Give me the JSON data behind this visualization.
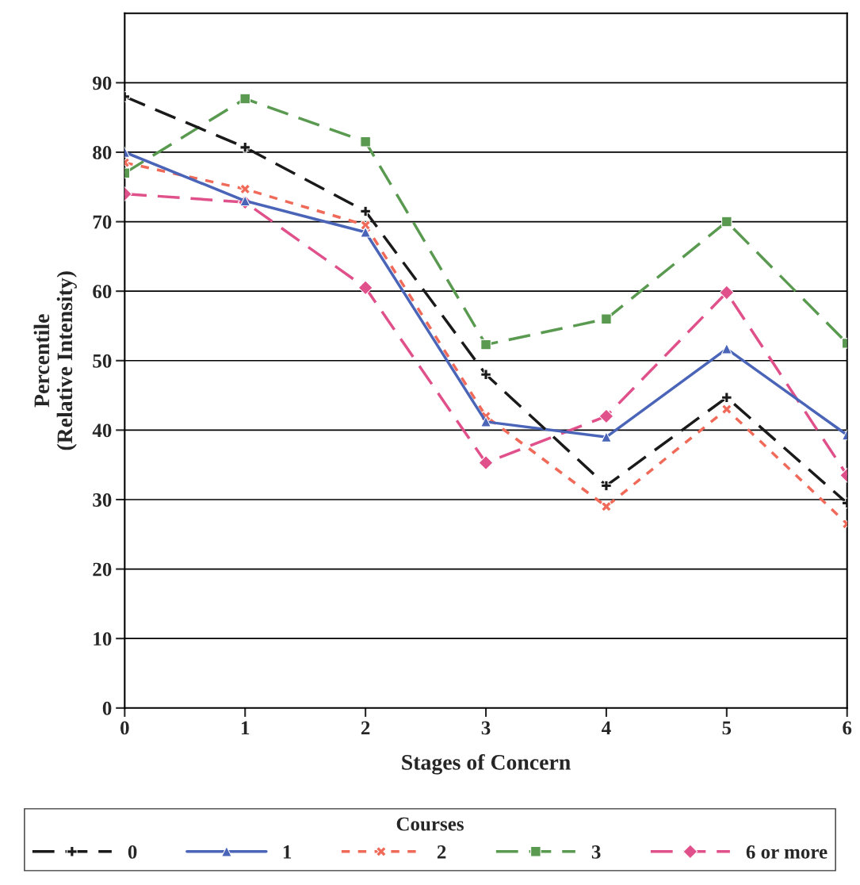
{
  "chart_data": {
    "type": "line",
    "xlabel": "Stages of Concern",
    "ylabel": "Percentile\n(Relative Intensity)",
    "legend_title": "Courses",
    "categories": [
      "0",
      "1",
      "2",
      "3",
      "4",
      "5",
      "6"
    ],
    "series": [
      {
        "name": "0",
        "color": "#1a1a1a",
        "line_style": "dashed",
        "marker": "plus",
        "values": [
          88,
          80.7,
          71.5,
          48,
          32,
          44.7,
          29.5
        ]
      },
      {
        "name": "1",
        "color": "#4a64b8",
        "line_style": "solid",
        "marker": "triangle",
        "values": [
          80,
          73,
          68.5,
          41.2,
          39,
          51.7,
          39.3
        ]
      },
      {
        "name": "2",
        "color": "#f06a5a",
        "line_style": "dotted",
        "marker": "cross",
        "values": [
          78.5,
          74.7,
          69.5,
          42,
          29,
          43,
          26.5
        ]
      },
      {
        "name": "3",
        "color": "#5a9a50",
        "line_style": "dashed",
        "marker": "square",
        "values": [
          77,
          87.7,
          81.5,
          52.3,
          56,
          70,
          52.5
        ]
      },
      {
        "name": "6 or more",
        "color": "#e0508a",
        "line_style": "dashed",
        "marker": "diamond",
        "values": [
          74,
          72.8,
          60.5,
          35.3,
          42,
          59.8,
          33.5
        ]
      }
    ],
    "ylim": [
      0,
      100
    ],
    "yticks": [
      0,
      10,
      20,
      30,
      40,
      50,
      60,
      70,
      80,
      90
    ],
    "grid": "y",
    "legend": "bottom"
  }
}
